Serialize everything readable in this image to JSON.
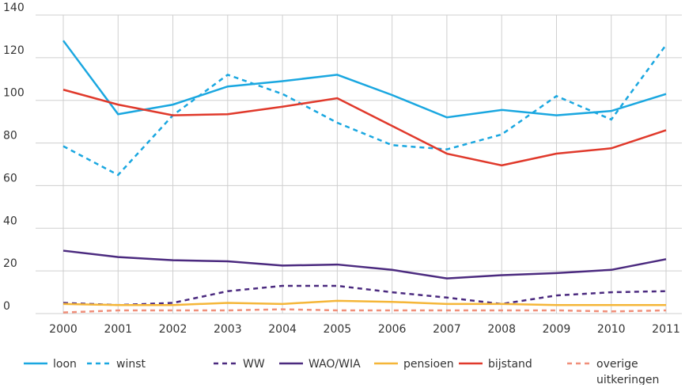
{
  "chart_data": {
    "type": "line",
    "x": [
      2000,
      2001,
      2002,
      2003,
      2004,
      2005,
      2006,
      2007,
      2008,
      2009,
      2010,
      2011
    ],
    "xlim": [
      2000,
      2011
    ],
    "xticks": [
      2000,
      2001,
      2002,
      2003,
      2004,
      2005,
      2006,
      2007,
      2008,
      2009,
      2010,
      2011
    ],
    "ylim": [
      0,
      140
    ],
    "yticks": [
      0,
      20,
      40,
      60,
      80,
      100,
      120,
      140
    ],
    "grid": true,
    "legend": "bottom",
    "series": [
      {
        "name": "loon",
        "color": "#1aa7e0",
        "dashed": false,
        "values": [
          128,
          93.5,
          98,
          106.5,
          109,
          112,
          102.5,
          92,
          95.5,
          93,
          95,
          103
        ]
      },
      {
        "name": "winst",
        "color": "#1aa7e0",
        "dashed": true,
        "values": [
          78.5,
          65,
          93,
          112,
          103,
          89.5,
          79,
          77,
          84,
          102,
          91,
          126
        ]
      },
      {
        "name": "WW",
        "color": "#4b2a7f",
        "dashed": true,
        "values": [
          5,
          4,
          5,
          10.5,
          13,
          13,
          10,
          7.5,
          4.5,
          8.5,
          10,
          10.5
        ]
      },
      {
        "name": "WAO/WIA",
        "color": "#4b2a7f",
        "dashed": false,
        "values": [
          29.5,
          26.5,
          25,
          24.5,
          22.5,
          23,
          20.5,
          16.5,
          18,
          19,
          20.5,
          25.5
        ]
      },
      {
        "name": "pensioen",
        "color": "#f5b638",
        "dashed": false,
        "values": [
          4.5,
          4,
          4,
          5,
          4.5,
          6,
          5.5,
          4.5,
          4.5,
          4,
          4,
          4
        ]
      },
      {
        "name": "bijstand",
        "color": "#e0392b",
        "dashed": false,
        "values": [
          105,
          98,
          93,
          93.5,
          97,
          101,
          88,
          75,
          69.5,
          75,
          77.5,
          86
        ]
      },
      {
        "name": "overige uitkeringen",
        "color": "#f08f7a",
        "dashed": true,
        "values": [
          0.5,
          1.5,
          1.5,
          1.5,
          2,
          1.5,
          1.5,
          1.5,
          1.5,
          1.5,
          1,
          1.5
        ]
      }
    ]
  }
}
